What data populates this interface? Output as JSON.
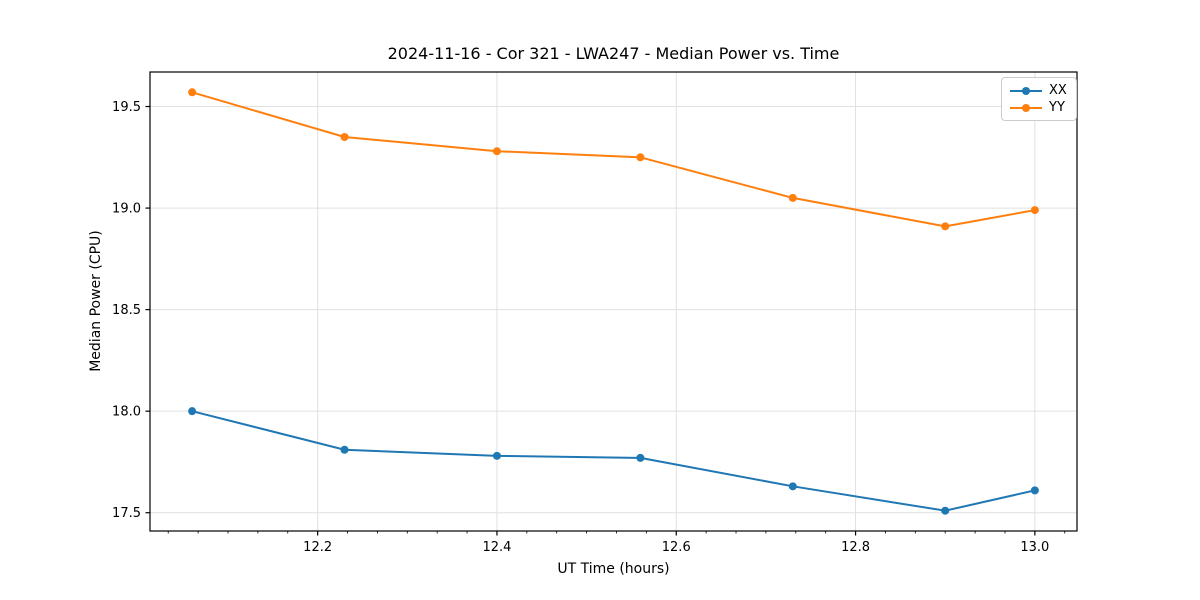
{
  "chart_data": {
    "type": "line",
    "title": "2024-11-16 - Cor 321 - LWA247 - Median Power vs. Time",
    "xlabel": "UT Time (hours)",
    "ylabel": "Median Power (CPU)",
    "x": [
      12.06,
      12.23,
      12.4,
      12.56,
      12.73,
      12.9,
      13.0
    ],
    "series": [
      {
        "name": "XX",
        "color": "#1f77b4",
        "values": [
          18.0,
          17.81,
          17.78,
          17.77,
          17.63,
          17.51,
          17.61
        ]
      },
      {
        "name": "YY",
        "color": "#ff7f0e",
        "values": [
          19.57,
          19.35,
          19.28,
          19.25,
          19.05,
          18.91,
          18.99
        ]
      }
    ],
    "xlim": [
      12.013,
      13.047
    ],
    "ylim": [
      17.41,
      19.67
    ],
    "xticks": [
      12.2,
      12.4,
      12.6,
      12.8,
      13.0
    ],
    "yticks": [
      17.5,
      18.0,
      18.5,
      19.0,
      19.5
    ],
    "x_minor_step": 0.0333333,
    "grid": true,
    "grid_color": "#e0e0e0",
    "axis_color": "#000000",
    "marker": "circle",
    "legend_position": "upper right",
    "tick_decimals": {
      "x": 1,
      "y": 1
    }
  }
}
